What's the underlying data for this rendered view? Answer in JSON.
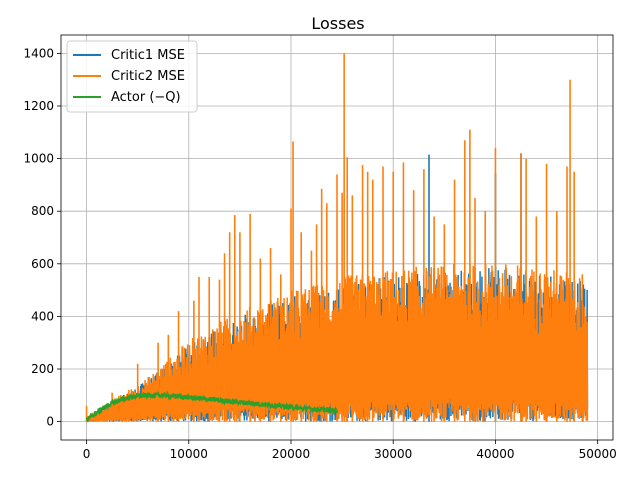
{
  "chart_data": {
    "type": "line",
    "title": "Losses",
    "xlabel": "",
    "ylabel": "",
    "xlim": [
      -2500,
      51500
    ],
    "ylim": [
      -70,
      1470
    ],
    "xticks": [
      0,
      10000,
      20000,
      30000,
      40000,
      50000
    ],
    "yticks": [
      0,
      200,
      400,
      600,
      800,
      1000,
      1200,
      1400
    ],
    "grid": true,
    "legend_position": "top-left",
    "series": [
      {
        "name": "Critic1 MSE",
        "color": "#1f77b4",
        "x_range": [
          0,
          49000
        ],
        "envelope_x": [
          0,
          2000,
          4000,
          6000,
          8000,
          10000,
          12000,
          14000,
          16000,
          18000,
          20000,
          22000,
          24000,
          26000,
          28000,
          30000,
          32000,
          34000,
          36000,
          38000,
          40000,
          42000,
          44000,
          46000,
          48000,
          49000
        ],
        "envelope_y": [
          15,
          60,
          110,
          160,
          220,
          290,
          340,
          380,
          420,
          450,
          480,
          500,
          520,
          540,
          550,
          560,
          570,
          575,
          580,
          585,
          590,
          585,
          580,
          570,
          560,
          500
        ],
        "spikes": [
          [
            40000,
            945
          ],
          [
            42500,
            1020
          ],
          [
            33500,
            1015
          ]
        ]
      },
      {
        "name": "Critic2 MSE",
        "color": "#ff7f0e",
        "x_range": [
          0,
          49000
        ],
        "envelope_x": [
          0,
          2000,
          4000,
          6000,
          8000,
          10000,
          12000,
          14000,
          16000,
          18000,
          20000,
          22000,
          24000,
          26000,
          28000,
          30000,
          32000,
          34000,
          36000,
          38000,
          40000,
          42000,
          44000,
          46000,
          48000,
          49000
        ],
        "envelope_y": [
          20,
          70,
          120,
          170,
          240,
          310,
          360,
          400,
          440,
          470,
          500,
          520,
          540,
          560,
          570,
          580,
          590,
          595,
          600,
          605,
          610,
          600,
          590,
          580,
          570,
          520
        ],
        "spikes": [
          [
            0,
            60
          ],
          [
            2500,
            110
          ],
          [
            5000,
            220
          ],
          [
            7000,
            300
          ],
          [
            8000,
            330
          ],
          [
            9000,
            420
          ],
          [
            10500,
            460
          ],
          [
            11000,
            550
          ],
          [
            12000,
            550
          ],
          [
            13000,
            540
          ],
          [
            13500,
            640
          ],
          [
            14000,
            720
          ],
          [
            14500,
            785
          ],
          [
            15000,
            720
          ],
          [
            16000,
            790
          ],
          [
            17000,
            620
          ],
          [
            18000,
            660
          ],
          [
            19000,
            560
          ],
          [
            20000,
            810
          ],
          [
            20200,
            1065
          ],
          [
            21000,
            720
          ],
          [
            22000,
            650
          ],
          [
            22500,
            750
          ],
          [
            23000,
            885
          ],
          [
            23500,
            830
          ],
          [
            24500,
            940
          ],
          [
            25000,
            870
          ],
          [
            25200,
            1400
          ],
          [
            25500,
            1005
          ],
          [
            26000,
            860
          ],
          [
            27000,
            975
          ],
          [
            27500,
            950
          ],
          [
            28000,
            920
          ],
          [
            29000,
            970
          ],
          [
            30000,
            950
          ],
          [
            31000,
            985
          ],
          [
            32000,
            880
          ],
          [
            33000,
            960
          ],
          [
            34000,
            780
          ],
          [
            35000,
            750
          ],
          [
            36000,
            920
          ],
          [
            37000,
            1070
          ],
          [
            37500,
            1110
          ],
          [
            38000,
            850
          ],
          [
            39000,
            800
          ],
          [
            40000,
            1040
          ],
          [
            42500,
            1020
          ],
          [
            43000,
            1000
          ],
          [
            44000,
            780
          ],
          [
            45000,
            980
          ],
          [
            46000,
            800
          ],
          [
            47000,
            970
          ],
          [
            47300,
            1300
          ],
          [
            47700,
            950
          ],
          [
            48500,
            560
          ]
        ]
      },
      {
        "name": "Actor (−Q)",
        "color": "#2ca02c",
        "x_range": [
          0,
          24500
        ],
        "envelope_x": [
          0,
          1000,
          2000,
          3000,
          4000,
          5000,
          6000,
          7000,
          8000,
          9000,
          10000,
          12000,
          14000,
          16000,
          18000,
          20000,
          22000,
          24500
        ],
        "envelope_y": [
          5,
          35,
          60,
          78,
          90,
          97,
          100,
          100,
          99,
          96,
          92,
          85,
          77,
          70,
          63,
          55,
          48,
          42
        ],
        "noise": 10
      }
    ]
  }
}
